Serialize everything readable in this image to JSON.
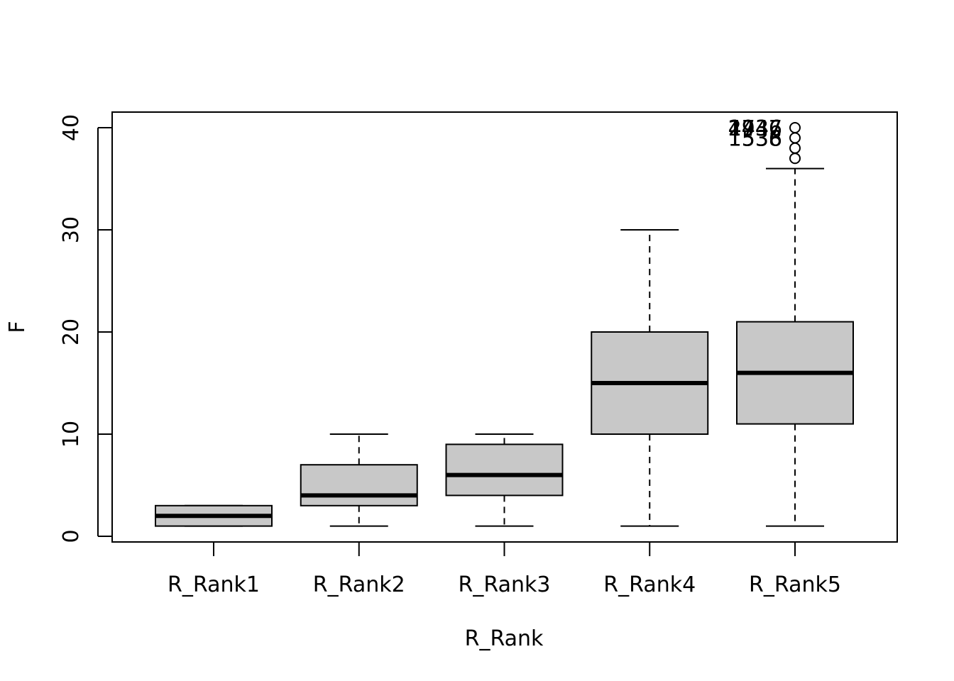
{
  "chart_data": {
    "type": "boxplot",
    "title": "",
    "xlabel": "R_Rank",
    "ylabel": "F",
    "ylim": [
      0,
      40
    ],
    "yticks": [
      0,
      10,
      20,
      30,
      40
    ],
    "grid": false,
    "box_fill": "#c8c8c8",
    "categories": [
      "R_Rank1",
      "R_Rank2",
      "R_Rank3",
      "R_Rank4",
      "R_Rank5"
    ],
    "boxes": [
      {
        "category": "R_Rank1",
        "whisker_low": 1,
        "q1": 1,
        "median": 2,
        "q3": 3,
        "whisker_high": 3,
        "outliers": []
      },
      {
        "category": "R_Rank2",
        "whisker_low": 1,
        "q1": 3,
        "median": 4,
        "q3": 7,
        "whisker_high": 10,
        "outliers": []
      },
      {
        "category": "R_Rank3",
        "whisker_low": 1,
        "q1": 4,
        "median": 6,
        "q3": 9,
        "whisker_high": 10,
        "outliers": []
      },
      {
        "category": "R_Rank4",
        "whisker_low": 1,
        "q1": 10,
        "median": 15,
        "q3": 20,
        "whisker_high": 30,
        "outliers": []
      },
      {
        "category": "R_Rank5",
        "whisker_low": 1,
        "q1": 11,
        "median": 16,
        "q3": 21,
        "whisker_high": 36,
        "outliers": [
          37,
          38,
          39,
          40
        ]
      }
    ],
    "outlier_labels": [
      {
        "text": "1737",
        "y": 40
      },
      {
        "text": "1936",
        "y": 40
      },
      {
        "text": "2446",
        "y": 40
      },
      {
        "text": "4447",
        "y": 40
      },
      {
        "text": "1538",
        "y": 39
      },
      {
        "text": "1536",
        "y": 39
      }
    ]
  }
}
